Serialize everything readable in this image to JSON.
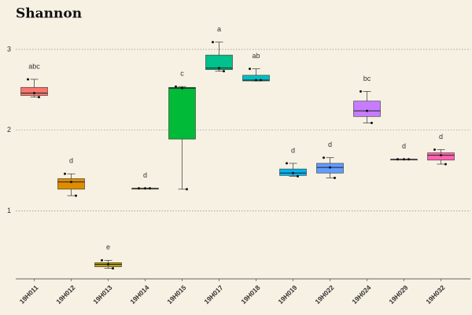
{
  "chart_data": {
    "type": "box",
    "title": "Shannon",
    "categories": [
      "19H011",
      "19H012",
      "19H013",
      "19H014",
      "19H015",
      "19H017",
      "19H018",
      "19H019",
      "19H022",
      "19H024",
      "19H029",
      "19H032"
    ],
    "ylim": [
      0.16,
      3.32
    ],
    "yticks": [
      1,
      2,
      3
    ],
    "grid": true,
    "boxes": [
      {
        "min": 2.41,
        "q1": 2.43,
        "median": 2.46,
        "q3": 2.53,
        "max": 2.63,
        "points": [
          2.63,
          2.41,
          2.46
        ],
        "color": "#F8766D",
        "label": "abc"
      },
      {
        "min": 1.19,
        "q1": 1.27,
        "median": 1.36,
        "q3": 1.4,
        "max": 1.46,
        "points": [
          1.46,
          1.19,
          1.36
        ],
        "color": "#DE8C00",
        "label": "d"
      },
      {
        "min": 0.29,
        "q1": 0.31,
        "median": 0.34,
        "q3": 0.36,
        "max": 0.39,
        "points": [
          0.39,
          0.29,
          0.34
        ],
        "color": "#B79F00",
        "label": "e"
      },
      {
        "min": 1.28,
        "q1": 1.28,
        "median": 1.28,
        "q3": 1.28,
        "max": 1.28,
        "points": [
          1.28,
          1.28,
          1.28
        ],
        "color": "#7CAE00",
        "label": "d"
      },
      {
        "min": 1.27,
        "q1": 1.89,
        "median": 2.52,
        "q3": 2.53,
        "max": 2.54,
        "points": [
          2.54,
          1.27,
          2.52
        ],
        "color": "#00BA38",
        "label": "c"
      },
      {
        "min": 2.73,
        "q1": 2.75,
        "median": 2.77,
        "q3": 2.93,
        "max": 3.09,
        "points": [
          3.09,
          2.73,
          2.77
        ],
        "color": "#00C08B",
        "label": "a"
      },
      {
        "min": 2.61,
        "q1": 2.61,
        "median": 2.62,
        "q3": 2.68,
        "max": 2.76,
        "points": [
          2.76,
          2.62,
          2.62
        ],
        "color": "#00BFC4",
        "label": "ab"
      },
      {
        "min": 1.43,
        "q1": 1.44,
        "median": 1.47,
        "q3": 1.52,
        "max": 1.59,
        "points": [
          1.59,
          1.43,
          1.47
        ],
        "color": "#00B4F0",
        "label": "d"
      },
      {
        "min": 1.41,
        "q1": 1.47,
        "median": 1.54,
        "q3": 1.59,
        "max": 1.66,
        "points": [
          1.66,
          1.41,
          1.54
        ],
        "color": "#619CFF",
        "label": "d"
      },
      {
        "min": 2.09,
        "q1": 2.17,
        "median": 2.24,
        "q3": 2.36,
        "max": 2.48,
        "points": [
          2.48,
          2.09,
          2.24
        ],
        "color": "#C77CFF",
        "label": "bc"
      },
      {
        "min": 1.64,
        "q1": 1.64,
        "median": 1.64,
        "q3": 1.64,
        "max": 1.64,
        "points": [
          1.64,
          1.64,
          1.64
        ],
        "color": "#F564E3",
        "label": "d"
      },
      {
        "min": 1.58,
        "q1": 1.63,
        "median": 1.69,
        "q3": 1.72,
        "max": 1.76,
        "points": [
          1.76,
          1.58,
          1.69
        ],
        "color": "#FF64B0",
        "label": "d"
      }
    ]
  }
}
